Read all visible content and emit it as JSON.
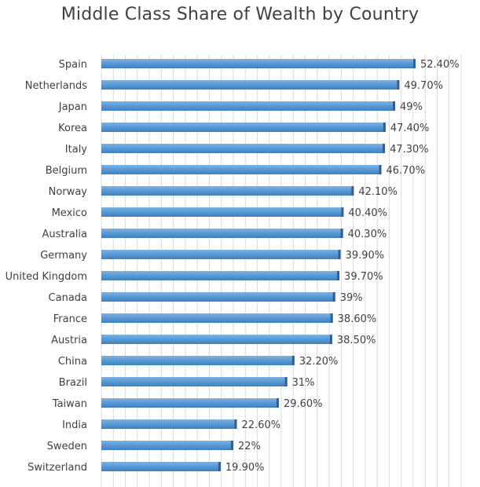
{
  "chart_data": {
    "type": "bar",
    "orientation": "horizontal",
    "title": "Middle Class Share of Wealth by Country",
    "categories": [
      "Spain",
      "Netherlands",
      "Japan",
      "Korea",
      "Italy",
      "Belgium",
      "Norway",
      "Mexico",
      "Australia",
      "Germany",
      "United Kingdom",
      "Canada",
      "France",
      "Austria",
      "China",
      "Brazil",
      "Taiwan",
      "India",
      "Sweden",
      "Switzerland"
    ],
    "values": [
      52.4,
      49.7,
      49,
      47.4,
      47.3,
      46.7,
      42.1,
      40.4,
      40.3,
      39.9,
      39.7,
      39,
      38.6,
      38.5,
      32.2,
      31,
      29.6,
      22.6,
      22,
      19.9
    ],
    "data_labels": [
      "52.40%",
      "49.70%",
      "49%",
      "47.40%",
      "47.30%",
      "46.70%",
      "42.10%",
      "40.40%",
      "40.30%",
      "39.90%",
      "39.70%",
      "39%",
      "38.60%",
      "38.50%",
      "32.20%",
      "31%",
      "29.60%",
      "22.60%",
      "22%",
      "19.90%"
    ],
    "xlim": [
      0,
      60
    ],
    "grid": true,
    "bar_color": "#5b9bd5"
  }
}
